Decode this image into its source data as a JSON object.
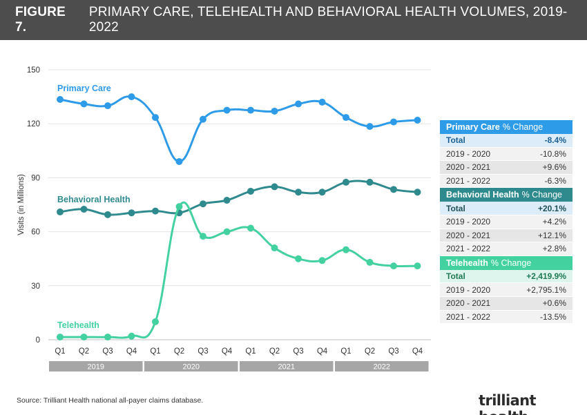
{
  "header": {
    "figure_number": "FIGURE 7.",
    "title": "PRIMARY CARE, TELEHEALTH AND BEHAVIORAL HEALTH VOLUMES, 2019-2022"
  },
  "colors": {
    "primary_care": "#2e9be9",
    "behavioral_health": "#2f8a8e",
    "telehealth": "#44d1a0",
    "header_bg": "#4d4d4d",
    "year_band": "#a6a6a6"
  },
  "chart_data": {
    "type": "line",
    "ylabel": "Visits (in Millions)",
    "xlabel": "",
    "ylim": [
      0,
      150
    ],
    "yticks": [
      0,
      30,
      60,
      90,
      120,
      150
    ],
    "grid": true,
    "categories": [
      "Q1",
      "Q2",
      "Q3",
      "Q4",
      "Q1",
      "Q2",
      "Q3",
      "Q4",
      "Q1",
      "Q2",
      "Q3",
      "Q4",
      "Q1",
      "Q2",
      "Q3",
      "Q4"
    ],
    "years": [
      "2019",
      "2020",
      "2021",
      "2022"
    ],
    "series": [
      {
        "name": "Primary Care",
        "key": "pc",
        "values": [
          133.5,
          131,
          130,
          135,
          123.5,
          99,
          122.5,
          127.5,
          127.5,
          127,
          131,
          132,
          123.5,
          118.5,
          121,
          122
        ]
      },
      {
        "name": "Behavioral Health",
        "key": "bh",
        "values": [
          71,
          72.5,
          69.5,
          70.5,
          71.5,
          70.5,
          75.5,
          77.5,
          82.5,
          85,
          82,
          82,
          87.5,
          87.5,
          83.5,
          82
        ]
      },
      {
        "name": "Telehealth",
        "key": "th",
        "values": [
          1.5,
          1.5,
          1.5,
          2,
          10,
          74,
          57.5,
          60,
          62,
          51,
          45,
          44,
          50,
          43,
          41,
          41
        ]
      }
    ],
    "stats": [
      {
        "key": "pc",
        "name": "Primary Care",
        "suffix": "% Change",
        "total_label": "Total",
        "total": "-8.4%",
        "rows": [
          {
            "label": "2019 - 2020",
            "value": "-10.8%"
          },
          {
            "label": "2020 - 2021",
            "value": "+9.6%"
          },
          {
            "label": "2021 - 2022",
            "value": "-6.3%"
          }
        ]
      },
      {
        "key": "bh",
        "name": "Behavioral Health",
        "suffix": "% Change",
        "total_label": "Total",
        "total": "+20.1%",
        "rows": [
          {
            "label": "2019 - 2020",
            "value": "+4.2%"
          },
          {
            "label": "2020 - 2021",
            "value": "+12.1%"
          },
          {
            "label": "2021 - 2022",
            "value": "+2.8%"
          }
        ]
      },
      {
        "key": "th",
        "name": "Telehealth",
        "suffix": "% Change",
        "total_label": "Total",
        "total": "+2,419.9%",
        "rows": [
          {
            "label": "2019 - 2020",
            "value": "+2,795.1%"
          },
          {
            "label": "2020 - 2021",
            "value": "+0.6%"
          },
          {
            "label": "2021 - 2022",
            "value": "-13.5%"
          }
        ]
      }
    ]
  },
  "footer": {
    "source": "Source: Trilliant Health national all-payer claims database.",
    "logo_text": "trilliant health"
  }
}
